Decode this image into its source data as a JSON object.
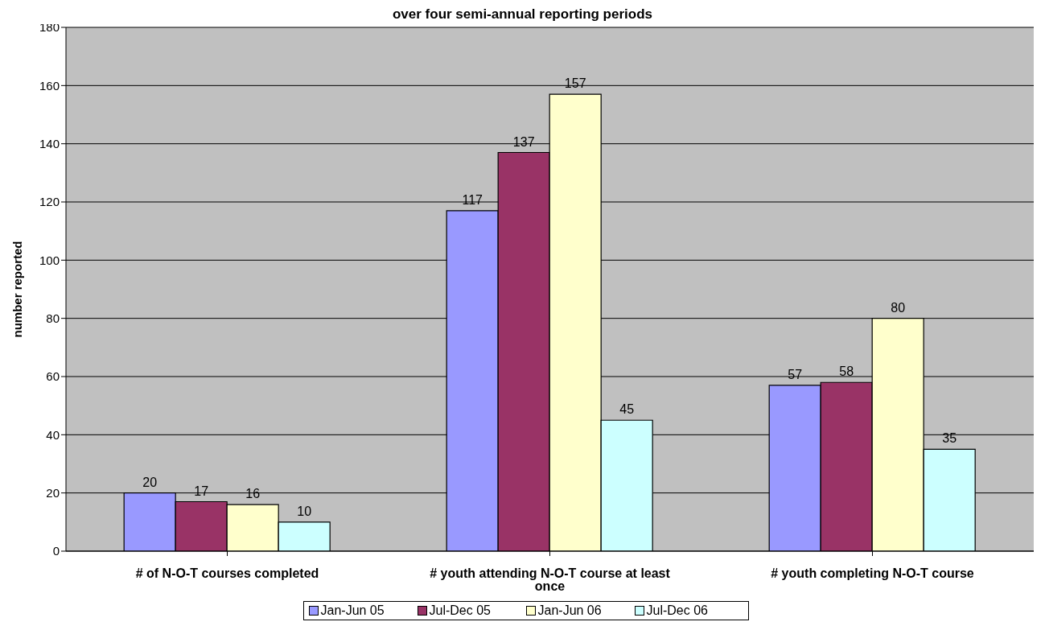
{
  "chart_data": {
    "type": "bar",
    "title": "over four semi-annual reporting periods",
    "ylabel": "number reported",
    "categories": [
      "# of N-O-T courses completed",
      "# youth attending N-O-T course at least once",
      "# youth completing N-O-T course"
    ],
    "series": [
      {
        "name": "Jan-Jun 05",
        "color": "#9999ff",
        "values": [
          20,
          117,
          57
        ]
      },
      {
        "name": "Jul-Dec 05",
        "color": "#993366",
        "values": [
          17,
          137,
          58
        ]
      },
      {
        "name": "Jan-Jun 06",
        "color": "#ffffcc",
        "values": [
          16,
          157,
          80
        ]
      },
      {
        "name": "Jul-Dec 06",
        "color": "#ccffff",
        "values": [
          10,
          45,
          35
        ]
      }
    ],
    "ylim": [
      0,
      180
    ],
    "yticks": [
      0,
      20,
      40,
      60,
      80,
      100,
      120,
      140,
      160,
      180
    ],
    "grid": "y",
    "legend": "bottom",
    "data_labels": true
  }
}
